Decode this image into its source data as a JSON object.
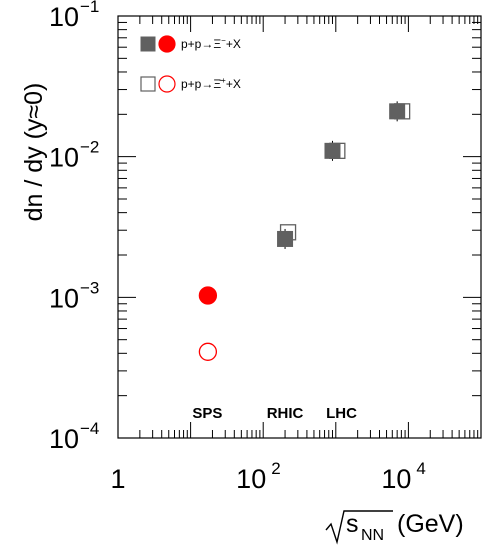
{
  "chart_data": {
    "type": "scatter",
    "xscale": "log",
    "yscale": "log",
    "xlim": [
      1,
      100000
    ],
    "ylim": [
      0.0001,
      0.1
    ],
    "xlabel": {
      "root": "√",
      "base": "s",
      "sub": "NN",
      "unit": "(GeV)"
    },
    "ylabel": "dn / dy (y≈0)",
    "x_ticks": [
      {
        "value": 1,
        "base": "1",
        "exp": ""
      },
      {
        "value": 100,
        "base": "10",
        "exp": "2"
      },
      {
        "value": 10000,
        "base": "10",
        "exp": "4"
      }
    ],
    "y_ticks": [
      {
        "value": 0.0001,
        "base": "10",
        "exp": "−4"
      },
      {
        "value": 0.001,
        "base": "10",
        "exp": "−3"
      },
      {
        "value": 0.01,
        "base": "10",
        "exp": "−2"
      },
      {
        "value": 0.1,
        "base": "10",
        "exp": "−1"
      }
    ],
    "regions": [
      {
        "label": "SPS",
        "x": 17
      },
      {
        "label": "RHIC",
        "x": 200
      },
      {
        "label": "LHC",
        "x": 1200
      }
    ],
    "series": [
      {
        "name_main": "p+p→Ξ",
        "name_sup": "−",
        "name_tail": "+X",
        "sps_color": "#ff0000",
        "other_color": "#606060",
        "filled": true,
        "points": [
          {
            "x": 17.3,
            "y": 0.00103,
            "facility": "SPS"
          },
          {
            "x": 200,
            "y": 0.0026,
            "facility": "RHIC"
          },
          {
            "x": 900,
            "y": 0.011,
            "facility": "LHC"
          },
          {
            "x": 7000,
            "y": 0.021,
            "facility": "LHC"
          }
        ]
      },
      {
        "name_main": "p+p→Ξ̄",
        "name_sup": "+",
        "name_tail": "+X",
        "sps_color": "#ff0000",
        "other_color": "#606060",
        "filled": false,
        "points": [
          {
            "x": 17.3,
            "y": 0.00041,
            "facility": "SPS"
          },
          {
            "x": 220,
            "y": 0.0029,
            "facility": "RHIC"
          },
          {
            "x": 1050,
            "y": 0.011,
            "facility": "LHC"
          },
          {
            "x": 8200,
            "y": 0.021,
            "facility": "LHC"
          }
        ]
      }
    ]
  }
}
